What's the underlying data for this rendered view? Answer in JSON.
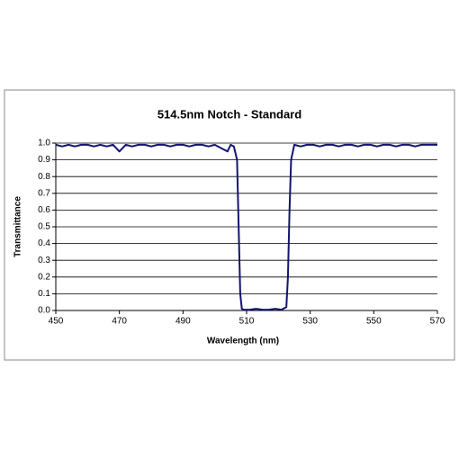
{
  "chart_data": {
    "type": "line",
    "title": "514.5nm Notch - Standard",
    "x_label": "Wavelength (nm)",
    "y_label": "Transmittance",
    "x": [
      450,
      452,
      454,
      456,
      458,
      460,
      462,
      464,
      466,
      468,
      470,
      472,
      474,
      476,
      478,
      480,
      482,
      484,
      486,
      488,
      490,
      492,
      494,
      496,
      498,
      500,
      502,
      504,
      505,
      506,
      507,
      507.5,
      508,
      508.5,
      509,
      511,
      513,
      515,
      517,
      519,
      521,
      522.5,
      523,
      523.5,
      524,
      525,
      527,
      529,
      531,
      533,
      535,
      537,
      539,
      541,
      543,
      545,
      547,
      549,
      551,
      553,
      555,
      557,
      559,
      561,
      563,
      565,
      567,
      569,
      570
    ],
    "series": [
      {
        "name": "Transmittance",
        "color": "#14146e",
        "values": [
          0.99,
          0.98,
          0.99,
          0.98,
          0.99,
          0.99,
          0.98,
          0.99,
          0.98,
          0.99,
          0.95,
          0.99,
          0.98,
          0.99,
          0.99,
          0.98,
          0.99,
          0.99,
          0.98,
          0.99,
          0.99,
          0.98,
          0.99,
          0.99,
          0.98,
          0.99,
          0.97,
          0.95,
          0.99,
          0.98,
          0.9,
          0.5,
          0.1,
          0.01,
          0.005,
          0.005,
          0.01,
          0.005,
          0.005,
          0.01,
          0.005,
          0.02,
          0.2,
          0.6,
          0.9,
          0.99,
          0.98,
          0.99,
          0.99,
          0.98,
          0.99,
          0.99,
          0.98,
          0.99,
          0.99,
          0.98,
          0.99,
          0.99,
          0.98,
          0.99,
          0.99,
          0.98,
          0.99,
          0.99,
          0.98,
          0.99,
          0.99,
          0.99,
          0.99
        ]
      }
    ],
    "xlim": [
      450,
      570
    ],
    "xticks": [
      450,
      470,
      490,
      510,
      530,
      550,
      570
    ],
    "ylim": [
      0,
      1
    ],
    "yticks": [
      {
        "value": 0,
        "label": "0.0"
      },
      0.1,
      0.2,
      0.3,
      0.4,
      0.5,
      0.6,
      0.7,
      0.8,
      0.9,
      {
        "value": 1,
        "label": "1.0"
      }
    ],
    "grid": true
  }
}
